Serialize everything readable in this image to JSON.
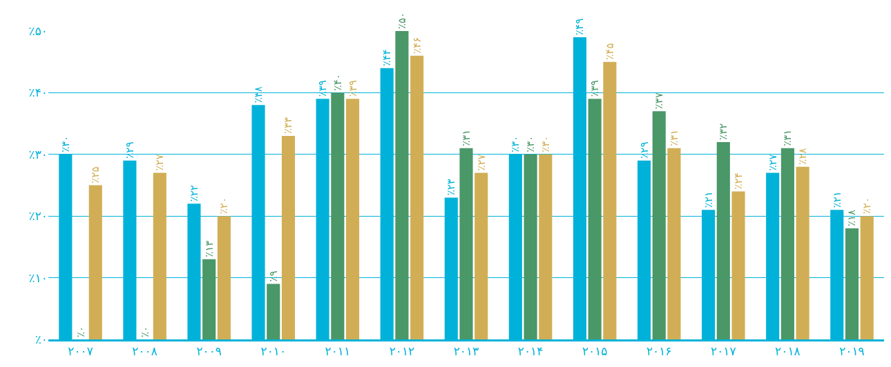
{
  "chart_data": {
    "type": "bar",
    "categories": [
      "۲۰۰۷",
      "۲۰۰۸",
      "۲۰۰۹",
      "۲۰۱۰",
      "۲۰۱۱",
      "۲۰۱۲",
      "۲۰۱۳",
      "۲۰۱۴",
      "۲۰۱۵",
      "۲۰۱۶",
      "۲۰۱۷",
      "۲۰۱۸",
      "۲۰۱۹"
    ],
    "series": [
      {
        "color": "#00b2d9",
        "values": [
          30,
          29,
          22,
          38,
          39,
          44,
          23,
          30,
          49,
          29,
          21,
          27,
          21
        ],
        "value_labels": [
          "٪۳۰",
          "٪۲۹",
          "٪۲۲",
          "٪۳۸",
          "٪۳۹",
          "٪۴۴",
          "٪۲۳",
          "٪۳۰",
          "٪۴۹",
          "٪۲۹",
          "٪۲۱",
          "٪۲۷",
          "٪۲۱"
        ]
      },
      {
        "color": "#4a9768",
        "values": [
          0,
          0,
          13,
          9,
          40,
          50,
          31,
          30,
          39,
          37,
          32,
          31,
          18
        ],
        "value_labels": [
          "٪۰",
          "٪۰",
          "٪۱۳",
          "٪۹",
          "٪۴۰",
          "٪۵۰",
          "٪۳۱",
          "٪۳۰",
          "٪۳۹",
          "٪۳۷",
          "٪۳۲",
          "٪۳۱",
          "٪۱۸"
        ]
      },
      {
        "color": "#d1ae55",
        "values": [
          25,
          27,
          20,
          33,
          39,
          46,
          27,
          30,
          45,
          31,
          24,
          28,
          20
        ],
        "value_labels": [
          "٪۲۵",
          "٪۲۷",
          "٪۲۰",
          "٪۳۳",
          "٪۳۹",
          "٪۴۶",
          "٪۲۷",
          "٪۳۰",
          "٪۴۵",
          "٪۳۱",
          "٪۲۴",
          "٪۲۸",
          "٪۲۰"
        ]
      }
    ],
    "ylim": [
      0,
      50
    ],
    "yticks": [
      {
        "value": 0,
        "label": "٪۰"
      },
      {
        "value": 10,
        "label": "٪۱۰"
      },
      {
        "value": 20,
        "label": "٪۲۰"
      },
      {
        "value": 30,
        "label": "٪۳۰"
      },
      {
        "value": 40,
        "label": "٪۴۰"
      },
      {
        "value": 50,
        "label": "٪۵۰"
      }
    ],
    "grid": "y"
  }
}
